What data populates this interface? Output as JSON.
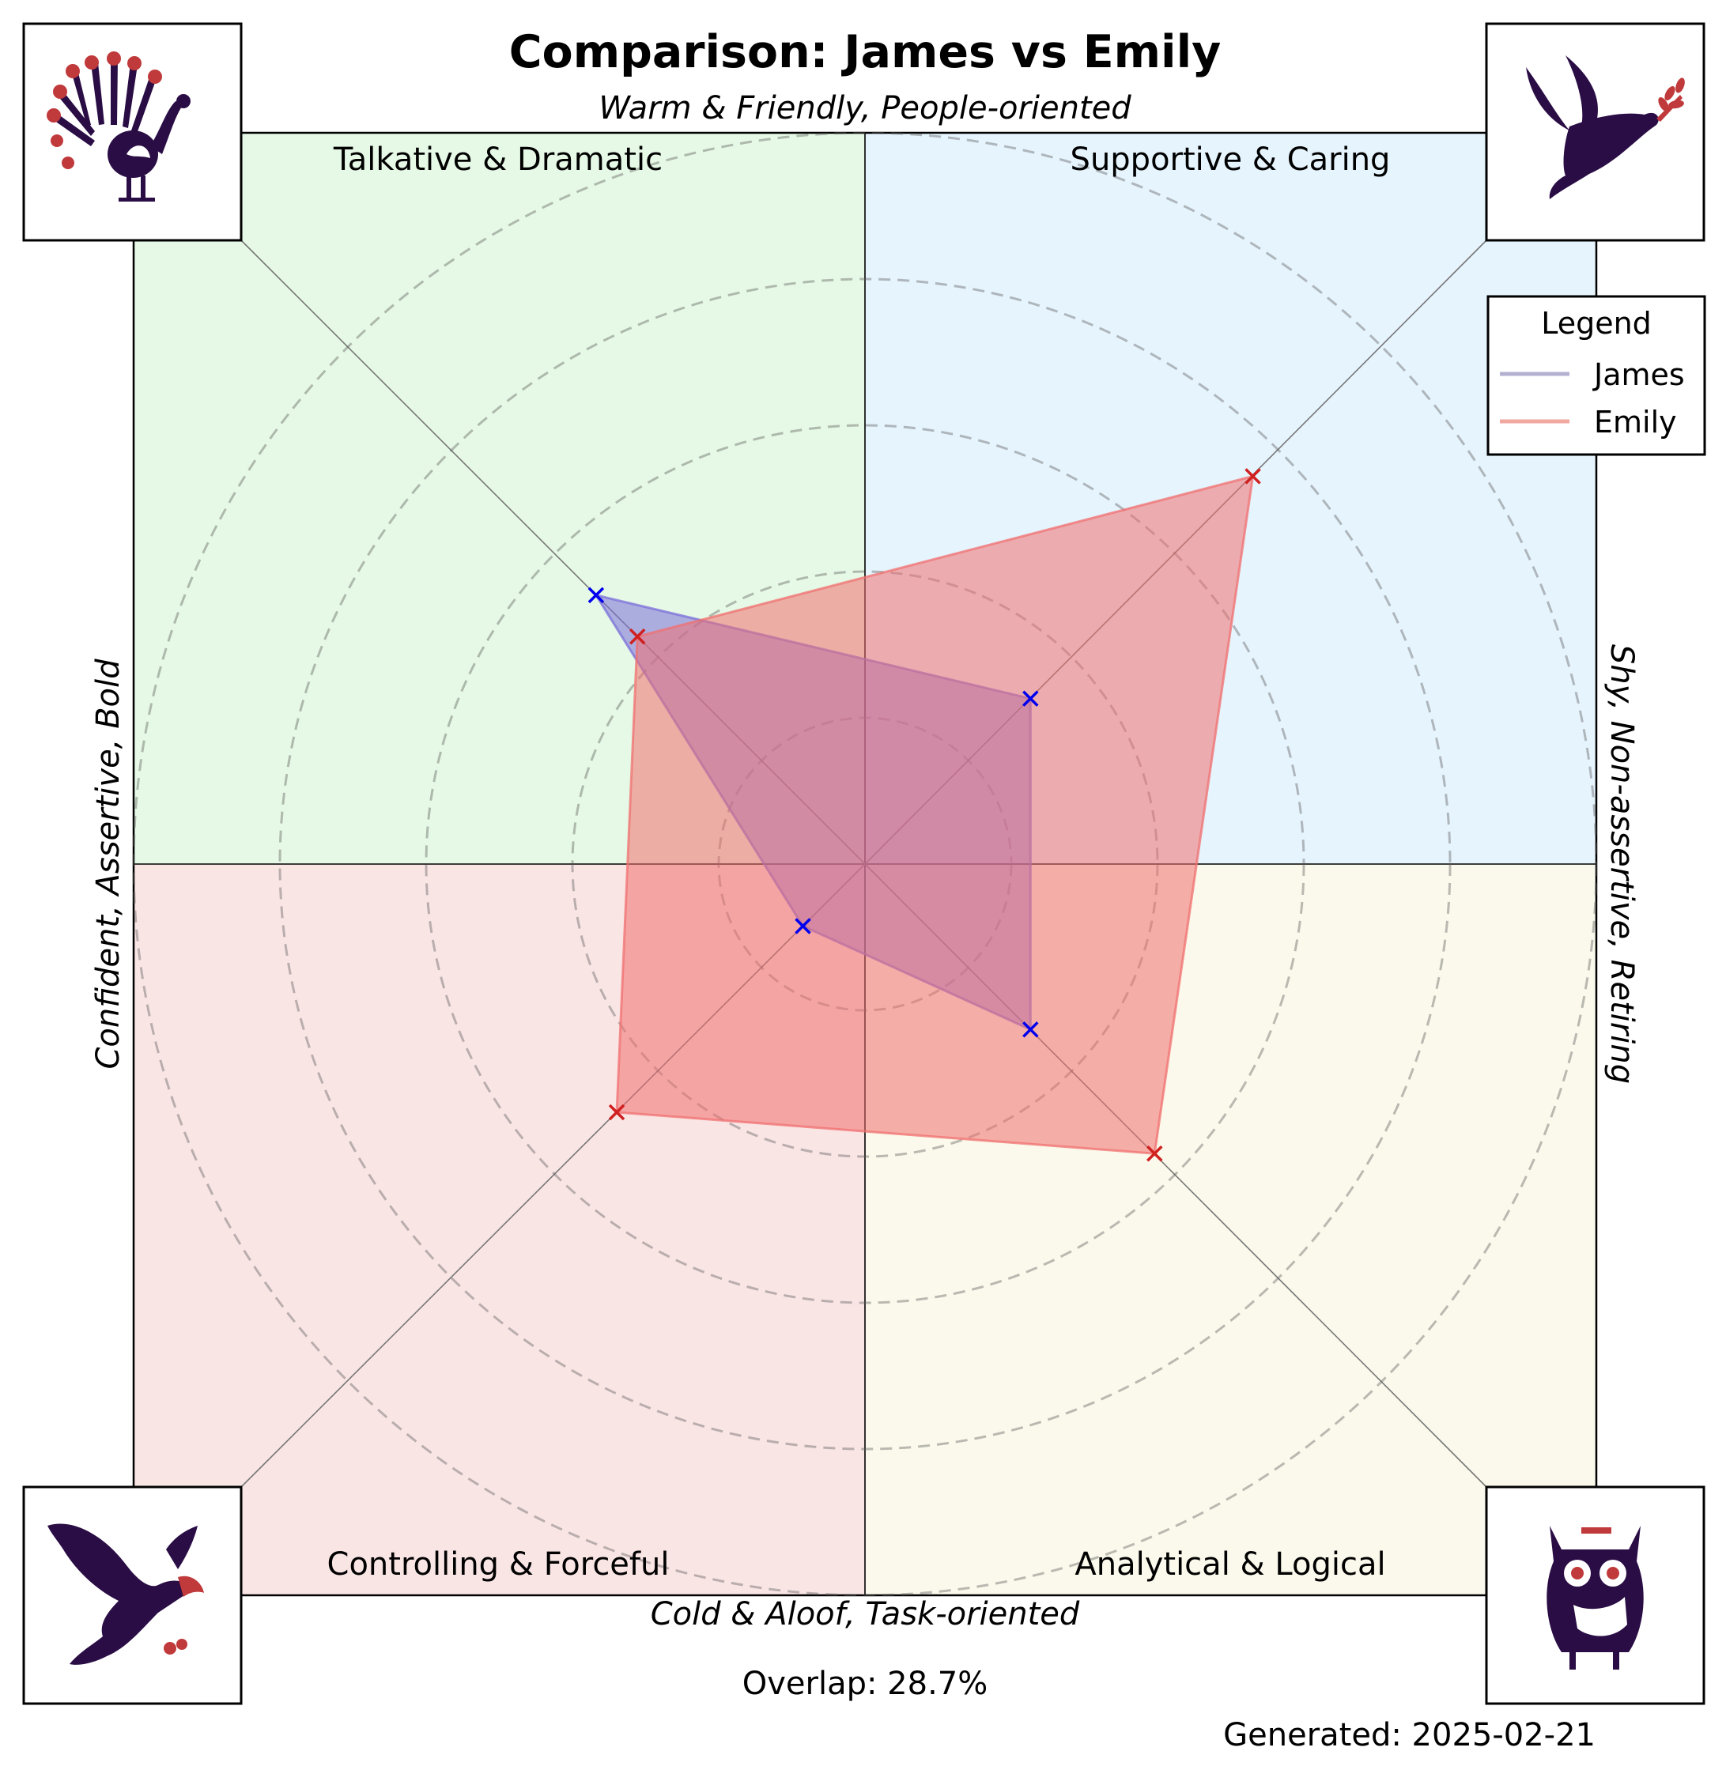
{
  "title": "Comparison: James vs Emily",
  "axis_labels": {
    "top": "Warm & Friendly, People-oriented",
    "bottom": "Cold & Aloof, Task-oriented",
    "left": "Confident, Assertive, Bold",
    "right": "Shy, Non-assertive, Retiring"
  },
  "quadrants": [
    {
      "label": "Talkative & Dramatic",
      "color": "#e6f9e6",
      "icon": "peacock-icon"
    },
    {
      "label": "Supportive & Caring",
      "color": "#e6f4fd",
      "icon": "dove-icon"
    },
    {
      "label": "Controlling & Forceful",
      "color": "#fae5e5",
      "icon": "eagle-icon"
    },
    {
      "label": "Analytical & Logical",
      "color": "#fbf9eb",
      "icon": "owl-icon"
    }
  ],
  "legend": {
    "title": "Legend",
    "placement": "top-right",
    "entries": [
      "James",
      "Emily"
    ]
  },
  "overlap_text": "Overlap: 28.7%",
  "generated_text": "Generated: 2025-02-21",
  "chart_data": {
    "type": "radar",
    "axes": [
      "Talkative & Dramatic",
      "Supportive & Caring",
      "Analytical & Logical",
      "Controlling & Forceful"
    ],
    "rlim": [
      0,
      5
    ],
    "grid": true,
    "series": [
      {
        "name": "James",
        "values": [
          2.6,
          1.6,
          1.6,
          0.6
        ],
        "fill": "#7b6fd9",
        "marker": "#0000ee",
        "legend_line": "#b3b0d0"
      },
      {
        "name": "Emily",
        "values": [
          2.2,
          3.75,
          2.8,
          2.4
        ],
        "fill": "#f07070",
        "marker": "#d02020",
        "legend_line": "#f0a8a0"
      }
    ]
  }
}
